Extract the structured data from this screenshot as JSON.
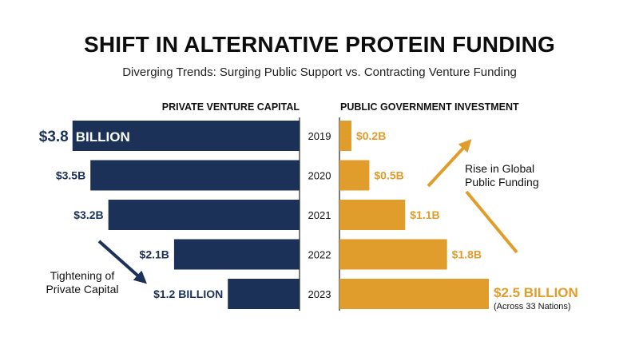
{
  "title": "SHIFT IN ALTERNATIVE PROTEIN FUNDING",
  "subtitle": "Diverging Trends: Surging Public Support vs. Contracting Venture Funding",
  "colors": {
    "private": "#1c3157",
    "public": "#e09d2c",
    "arrow_private": "#1c3157",
    "arrow_public": "#e09d2c"
  },
  "chart_data": {
    "type": "bar",
    "categories": [
      "2019",
      "2020",
      "2021",
      "2022",
      "2023"
    ],
    "series": [
      {
        "name": "PRIVATE VENTURE CAPITAL",
        "unit": "billion USD",
        "values": [
          3.8,
          3.5,
          3.2,
          2.1,
          1.2
        ],
        "labels": [
          [
            "$3.8",
            "BILLION"
          ],
          [
            "$3.5B"
          ],
          [
            "$3.2B"
          ],
          [
            "$2.1B"
          ],
          [
            "$1.2 BILLION"
          ]
        ]
      },
      {
        "name": "PUBLIC GOVERNMENT INVESTMENT",
        "unit": "billion USD",
        "values": [
          0.2,
          0.5,
          1.1,
          1.8,
          2.5
        ],
        "labels": [
          [
            "$0.2B"
          ],
          [
            "$0.5B"
          ],
          [
            "$1.1B"
          ],
          [
            "$1.8B"
          ],
          [
            "$2.5 BILLION"
          ]
        ]
      }
    ],
    "annotations": {
      "public_last_note": "(Across 33 Nations)",
      "private_trend": [
        "Tightening of",
        "Private Capital"
      ],
      "public_trend": [
        "Rise in Global",
        "Public Funding"
      ]
    },
    "orientation": "horizontal-diverging",
    "grid": false
  }
}
